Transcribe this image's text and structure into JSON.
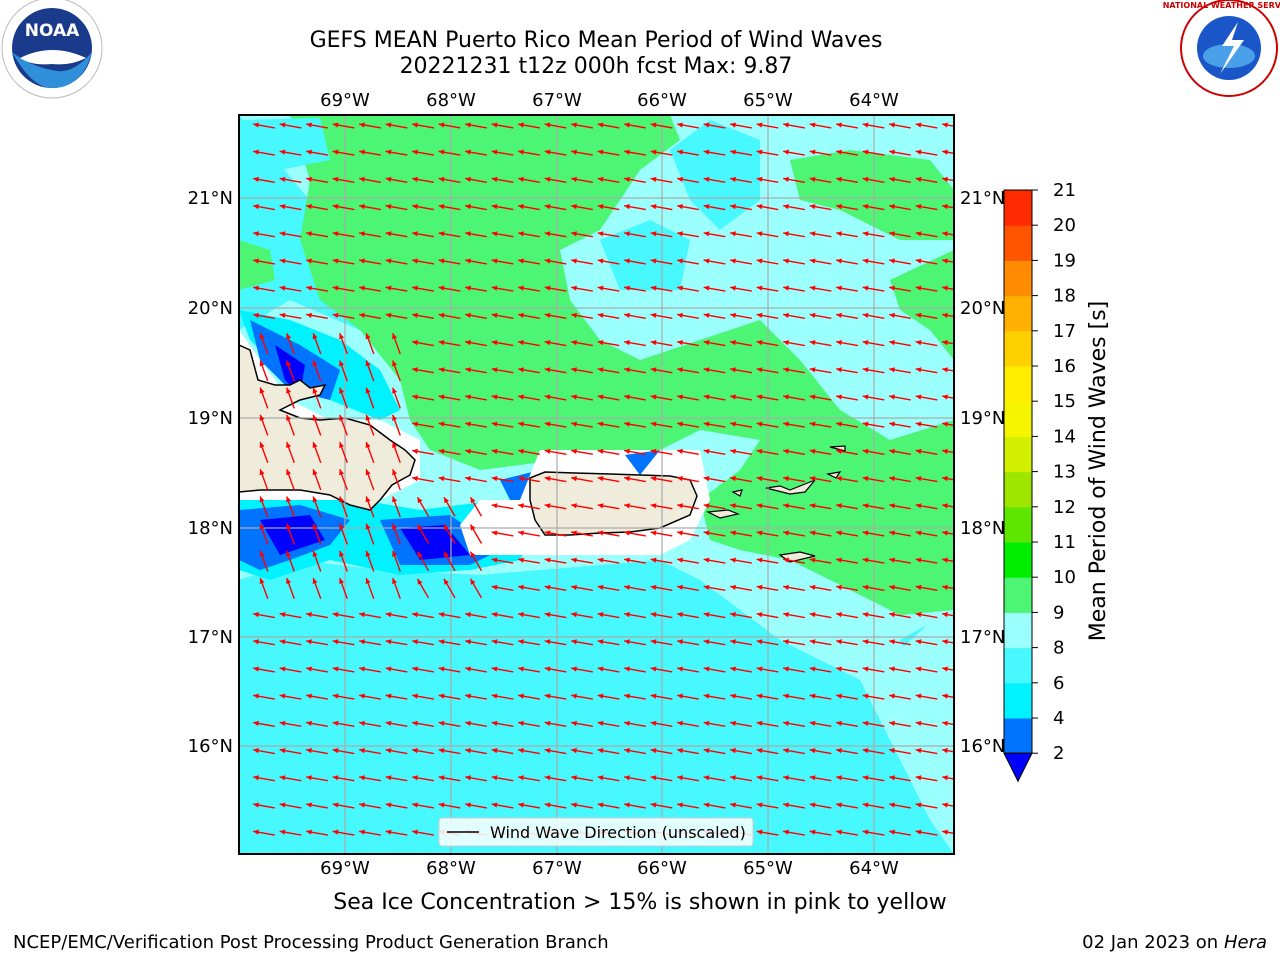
{
  "header": {
    "title_line1": "GEFS MEAN Puerto Rico Mean Period of Wind Waves",
    "title_line2": "20221231 t12z 000h fcst   Max: 9.87"
  },
  "logos": {
    "left": {
      "name": "noaa-logo",
      "text": "NOAA"
    },
    "right": {
      "name": "national-weather-service-logo",
      "text": "NATIONAL WEATHER SERVICE"
    }
  },
  "map": {
    "lon_labels": [
      "69°W",
      "68°W",
      "67°W",
      "66°W",
      "65°W",
      "64°W"
    ],
    "lat_labels": [
      "21°N",
      "20°N",
      "19°N",
      "18°N",
      "17°N",
      "16°N"
    ],
    "legend_label": "Wind Wave Direction (unscaled)",
    "arrow_color": "#ff0000",
    "land_color": "#efecdc"
  },
  "colorbar": {
    "label": "Mean Period of Wind Waves [s]",
    "ticks": [
      "2",
      "4",
      "6",
      "8",
      "9",
      "10",
      "11",
      "12",
      "13",
      "14",
      "15",
      "16",
      "17",
      "18",
      "19",
      "20",
      "21"
    ],
    "colors": [
      "#0000ff",
      "#0073ff",
      "#00f2ff",
      "#47f8ff",
      "#9afffd",
      "#4df575",
      "#00ee00",
      "#5fe600",
      "#9ee600",
      "#d2f000",
      "#f5f500",
      "#ffee00",
      "#ffd000",
      "#ffb000",
      "#ff8c00",
      "#ff5500",
      "#ff2a00",
      "#ff0000"
    ]
  },
  "caption": "Sea Ice Concentration > 15% is shown in pink to yellow",
  "footer": {
    "left": "NCEP/EMC/Verification Post Processing Product Generation Branch",
    "date": "02 Jan 2023 on",
    "machine": "Hera"
  }
}
